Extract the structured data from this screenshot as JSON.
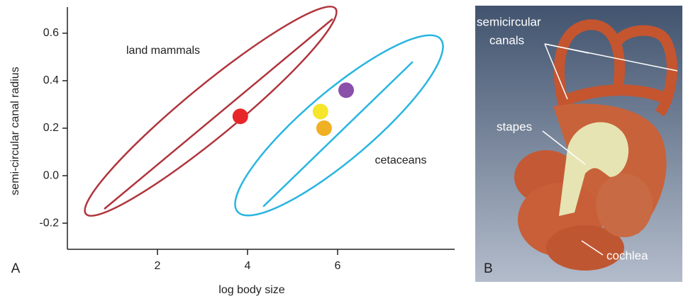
{
  "chart_data": {
    "type": "scatter",
    "panel_label": "A",
    "x_label": "log body size",
    "y_label": "semi-circular canal radius",
    "annotations": [
      "land mammals",
      "cetaceans"
    ],
    "xlim": [
      0,
      8.6
    ],
    "ylim": [
      -0.31,
      0.71
    ],
    "xticks": [
      2,
      4,
      6
    ],
    "yticks": [
      -0.2,
      {
        "value": 0,
        "label": "0.0"
      },
      0.2,
      0.4,
      0.6
    ],
    "x": [
      3.84,
      5.62,
      5.7,
      6.19
    ],
    "values": [
      0.25,
      0.27,
      0.2,
      0.36
    ],
    "colors": [
      "#e8262a",
      "#f5e52b",
      "#f0b024",
      "#8a4fa8"
    ],
    "lines": [
      {
        "color": "#b0343c",
        "x": [
          0.82,
          5.89
        ],
        "values": [
          -0.14,
          0.66
        ]
      },
      {
        "color": "#29b5e0",
        "x": [
          4.35,
          7.67
        ],
        "values": [
          -0.13,
          0.48
        ]
      }
    ]
  },
  "panel_b": {
    "label": "B",
    "annotations": [
      "semicircular",
      "canals",
      "stapes",
      "cochlea"
    ]
  }
}
